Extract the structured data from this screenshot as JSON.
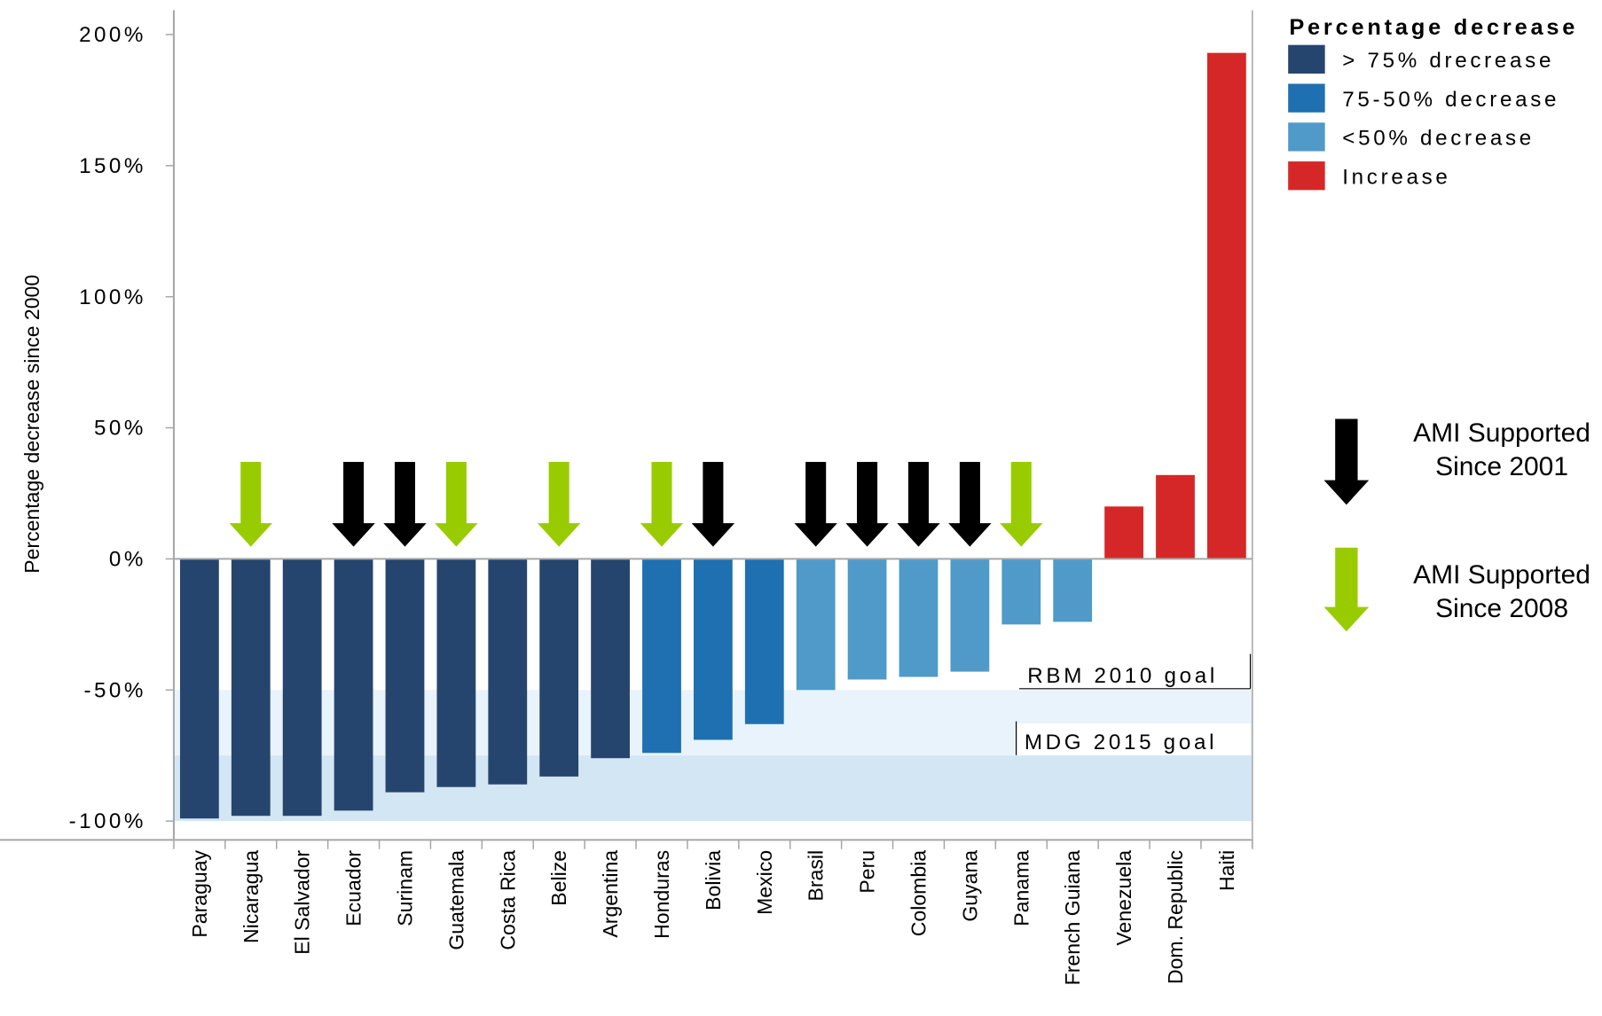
{
  "chart_data": {
    "type": "bar",
    "ylabel": "Percentage decrease since 2000",
    "ylim": [
      -100,
      200
    ],
    "y_tick_values": [
      -100,
      -50,
      0,
      50,
      100,
      150,
      200
    ],
    "y_tick_labels": [
      "-100%",
      "-50%",
      "0%",
      "50%",
      "100%",
      "150%",
      "200%"
    ],
    "grid": false,
    "legend_position": "top-right",
    "categories": [
      "Paraguay",
      "Nicaragua",
      "El Salvador",
      "Ecuador",
      "Surinam",
      "Guatemala",
      "Costa Rica",
      "Belize",
      "Argentina",
      "Honduras",
      "Bolivia",
      "Mexico",
      "Brasil",
      "Peru",
      "Colombia",
      "Guyana",
      "Panama",
      "French Guiana",
      "Venezuela",
      "Dom. Republic",
      "Haiti"
    ],
    "values": [
      -99,
      -98,
      -98,
      -96,
      -89,
      -87,
      -86,
      -83,
      -76,
      -74,
      -69,
      -63,
      -50,
      -46,
      -45,
      -43,
      -25,
      -24,
      20,
      32,
      193
    ],
    "bar_groups": [
      "g1",
      "g1",
      "g1",
      "g1",
      "g1",
      "g1",
      "g1",
      "g1",
      "g1",
      "g2",
      "g2",
      "g2",
      "g3",
      "g3",
      "g3",
      "g3",
      "g3",
      "g3",
      "g4",
      "g4",
      "g4"
    ],
    "legend_title": "Percentage decrease",
    "legend": [
      {
        "key": "g1",
        "label": "> 75% drecrease",
        "color": "#26456e"
      },
      {
        "key": "g2",
        "label": "75-50% decrease",
        "color": "#1f70b0"
      },
      {
        "key": "g3",
        "label": "<50% decrease",
        "color": "#4f9ac8"
      },
      {
        "key": "g4",
        "label": "Increase",
        "color": "#d62728"
      }
    ],
    "goal_bands": [
      {
        "label": "RBM 2010 goal",
        "from": -75,
        "to": -50,
        "color": "#e8f3fb"
      },
      {
        "label": "MDG 2015 goal",
        "from": -100,
        "to": -75,
        "color": "#d3e6f3"
      }
    ],
    "arrow_markers": {
      "black": [
        "Ecuador",
        "Surinam",
        "Bolivia",
        "Brasil",
        "Peru",
        "Colombia",
        "Guyana"
      ],
      "green": [
        "Nicaragua",
        "Guatemala",
        "Belize",
        "Honduras",
        "Panama"
      ]
    },
    "arrow_legend": [
      {
        "key": "black",
        "line1": "AMI Supported",
        "line2": "Since 2001",
        "color": "#000000"
      },
      {
        "key": "green",
        "line1": "AMI Supported",
        "line2": "Since 2008",
        "color": "#99cc00"
      }
    ]
  }
}
